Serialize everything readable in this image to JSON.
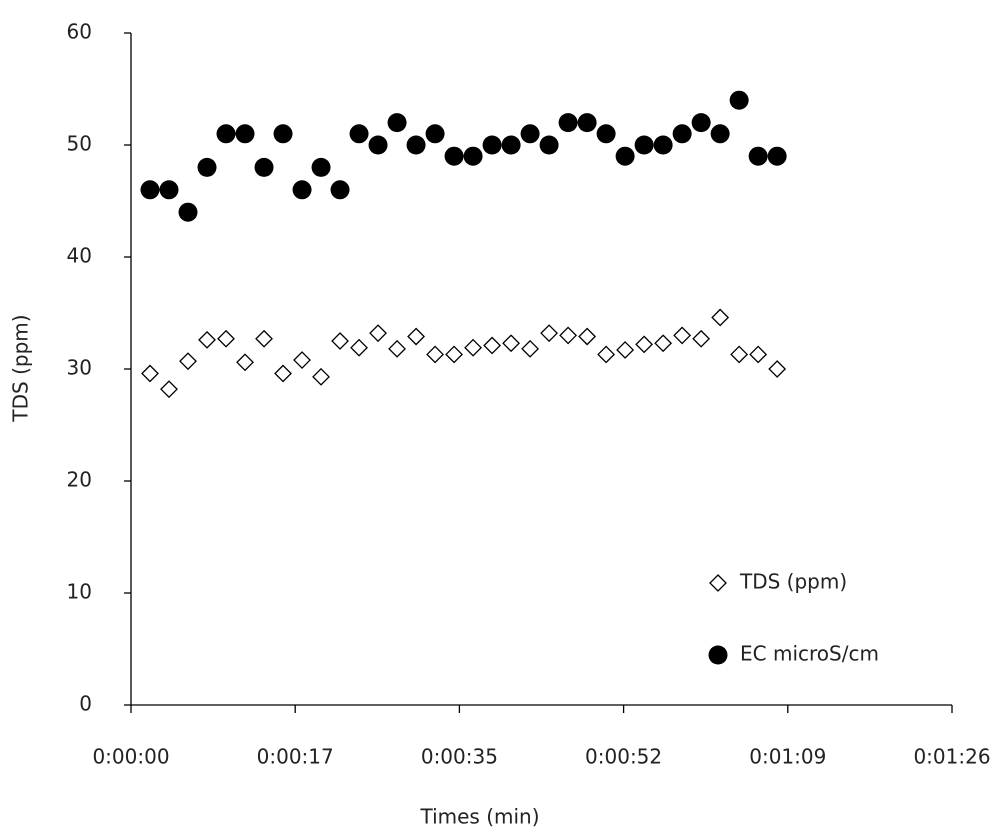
{
  "chart_data": {
    "type": "scatter",
    "xlabel": "Times (min)",
    "ylabel": "TDS (ppm)",
    "x": [
      2,
      4,
      6,
      8,
      10,
      12,
      14,
      16,
      18,
      20,
      22,
      24,
      26,
      28,
      30,
      32,
      34,
      36,
      38,
      40,
      42,
      44,
      46,
      48,
      50,
      52,
      54,
      56,
      58,
      60,
      62,
      64,
      66,
      68
    ],
    "series": [
      {
        "name": "TDS (ppm)",
        "marker": "diamond",
        "color": "#000000",
        "values": [
          29.6,
          28.2,
          30.7,
          32.6,
          32.7,
          30.6,
          32.7,
          29.6,
          30.8,
          29.3,
          32.5,
          31.9,
          33.2,
          31.8,
          32.9,
          31.3,
          31.3,
          31.9,
          32.1,
          32.3,
          31.8,
          33.2,
          33.0,
          32.9,
          31.3,
          31.7,
          32.2,
          32.3,
          33.0,
          32.7,
          34.6,
          31.3,
          31.3,
          30.0
        ]
      },
      {
        "name": "EC microS/cm",
        "marker": "circle",
        "color": "#000000",
        "values": [
          46,
          46,
          44,
          48,
          51,
          51,
          48,
          51,
          46,
          48,
          46,
          51,
          50,
          52,
          50,
          51,
          49,
          49,
          50,
          50,
          51,
          50,
          52,
          52,
          51,
          49,
          50,
          50,
          51,
          52,
          51,
          54,
          49,
          49
        ]
      }
    ],
    "xlim": [
      0,
      86.4
    ],
    "xticks": [
      {
        "value": 0,
        "label": "0:00:00"
      },
      {
        "value": 17.28,
        "label": "0:00:17"
      },
      {
        "value": 34.56,
        "label": "0:00:35"
      },
      {
        "value": 51.84,
        "label": "0:00:52"
      },
      {
        "value": 69.12,
        "label": "0:01:09"
      },
      {
        "value": 86.4,
        "label": "0:01:26"
      }
    ],
    "ylim": [
      0,
      60
    ],
    "yticks": [
      0,
      10,
      20,
      30,
      40,
      50,
      60
    ],
    "grid": false,
    "legend": "lower right"
  }
}
